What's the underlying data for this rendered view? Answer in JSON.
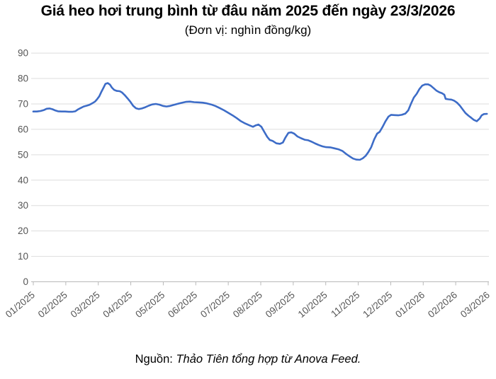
{
  "title": "Giá heo hơi trung bình từ đâu năm 2025 đến ngày 23/3/2026",
  "subtitle": "(Đơn vị: nghìn đồng/kg)",
  "source": {
    "label": "Nguồn: ",
    "text": "Thảo Tiên tổng hợp từ Anova Feed."
  },
  "colors": {
    "line": "#3d6cc7",
    "gridline": "#dddddd",
    "axis": "#b8b8b8",
    "tick_label": "#555555",
    "title_text": "#000000"
  },
  "chart_data": {
    "type": "line",
    "title": "Giá heo hơi trung bình từ đâu năm 2025 đến ngày 23/3/2026",
    "subtitle_unit": "nghìn đồng/kg",
    "xlabel": "",
    "ylabel": "",
    "ylim": [
      0,
      90
    ],
    "y_ticks": [
      0,
      10,
      20,
      30,
      40,
      50,
      60,
      70,
      80,
      90
    ],
    "x_tick_labels": [
      "01/2025",
      "02/2025",
      "03/2025",
      "04/2025",
      "05/2025",
      "06/2025",
      "07/2025",
      "08/2025",
      "09/2025",
      "10/2025",
      "11/2025",
      "12/2025",
      "01/2026",
      "02/2026",
      "03/2026"
    ],
    "x_axis_unit": "month index (0 = 01/2025 tick, 14 = 03/2026 tick)",
    "grid": "horizontal",
    "legend": "none",
    "series": [
      {
        "name": "Giá heo hơi trung bình (nghìn đồng/kg)",
        "points": [
          [
            0.0,
            67.0
          ],
          [
            0.11,
            67.0
          ],
          [
            0.22,
            67.2
          ],
          [
            0.33,
            67.6
          ],
          [
            0.41,
            68.1
          ],
          [
            0.5,
            68.2
          ],
          [
            0.59,
            67.9
          ],
          [
            0.68,
            67.4
          ],
          [
            0.76,
            67.1
          ],
          [
            0.87,
            67.0
          ],
          [
            0.98,
            67.0
          ],
          [
            1.09,
            66.9
          ],
          [
            1.2,
            66.9
          ],
          [
            1.29,
            67.1
          ],
          [
            1.37,
            67.8
          ],
          [
            1.46,
            68.4
          ],
          [
            1.55,
            69.0
          ],
          [
            1.64,
            69.3
          ],
          [
            1.72,
            69.6
          ],
          [
            1.81,
            70.2
          ],
          [
            1.9,
            70.9
          ],
          [
            1.96,
            71.8
          ],
          [
            2.03,
            73.0
          ],
          [
            2.09,
            74.6
          ],
          [
            2.16,
            76.4
          ],
          [
            2.22,
            77.9
          ],
          [
            2.29,
            78.2
          ],
          [
            2.36,
            77.6
          ],
          [
            2.42,
            76.4
          ],
          [
            2.49,
            75.5
          ],
          [
            2.57,
            75.1
          ],
          [
            2.66,
            75.0
          ],
          [
            2.73,
            74.5
          ],
          [
            2.81,
            73.5
          ],
          [
            2.9,
            72.2
          ],
          [
            2.99,
            70.8
          ],
          [
            3.07,
            69.3
          ],
          [
            3.16,
            68.3
          ],
          [
            3.25,
            68.0
          ],
          [
            3.34,
            68.2
          ],
          [
            3.45,
            68.7
          ],
          [
            3.55,
            69.3
          ],
          [
            3.66,
            69.8
          ],
          [
            3.77,
            70.0
          ],
          [
            3.88,
            69.7
          ],
          [
            3.99,
            69.2
          ],
          [
            4.1,
            69.0
          ],
          [
            4.21,
            69.2
          ],
          [
            4.32,
            69.6
          ],
          [
            4.43,
            70.0
          ],
          [
            4.56,
            70.4
          ],
          [
            4.69,
            70.8
          ],
          [
            4.82,
            70.9
          ],
          [
            4.95,
            70.7
          ],
          [
            5.08,
            70.6
          ],
          [
            5.21,
            70.5
          ],
          [
            5.34,
            70.2
          ],
          [
            5.47,
            69.8
          ],
          [
            5.6,
            69.2
          ],
          [
            5.73,
            68.4
          ],
          [
            5.87,
            67.5
          ],
          [
            6.0,
            66.5
          ],
          [
            6.13,
            65.5
          ],
          [
            6.26,
            64.4
          ],
          [
            6.39,
            63.2
          ],
          [
            6.52,
            62.3
          ],
          [
            6.65,
            61.6
          ],
          [
            6.76,
            61.0
          ],
          [
            6.85,
            61.6
          ],
          [
            6.93,
            61.9
          ],
          [
            7.02,
            61.0
          ],
          [
            7.11,
            59.0
          ],
          [
            7.2,
            57.0
          ],
          [
            7.28,
            55.8
          ],
          [
            7.37,
            55.4
          ],
          [
            7.48,
            54.5
          ],
          [
            7.59,
            54.3
          ],
          [
            7.68,
            54.8
          ],
          [
            7.76,
            56.8
          ],
          [
            7.85,
            58.6
          ],
          [
            7.94,
            58.8
          ],
          [
            8.03,
            58.3
          ],
          [
            8.13,
            57.2
          ],
          [
            8.24,
            56.5
          ],
          [
            8.35,
            55.9
          ],
          [
            8.46,
            55.7
          ],
          [
            8.57,
            55.1
          ],
          [
            8.68,
            54.4
          ],
          [
            8.79,
            53.8
          ],
          [
            8.9,
            53.3
          ],
          [
            9.01,
            53.0
          ],
          [
            9.14,
            52.9
          ],
          [
            9.27,
            52.5
          ],
          [
            9.4,
            52.1
          ],
          [
            9.51,
            51.5
          ],
          [
            9.62,
            50.4
          ],
          [
            9.73,
            49.4
          ],
          [
            9.84,
            48.5
          ],
          [
            9.94,
            48.1
          ],
          [
            10.05,
            48.0
          ],
          [
            10.14,
            48.6
          ],
          [
            10.23,
            49.6
          ],
          [
            10.31,
            51.0
          ],
          [
            10.4,
            53.0
          ],
          [
            10.49,
            56.0
          ],
          [
            10.58,
            58.3
          ],
          [
            10.66,
            59.0
          ],
          [
            10.75,
            61.0
          ],
          [
            10.84,
            63.2
          ],
          [
            10.93,
            65.0
          ],
          [
            11.01,
            65.7
          ],
          [
            11.12,
            65.6
          ],
          [
            11.23,
            65.5
          ],
          [
            11.34,
            65.7
          ],
          [
            11.45,
            66.2
          ],
          [
            11.54,
            67.5
          ],
          [
            11.62,
            70.0
          ],
          [
            11.71,
            72.5
          ],
          [
            11.8,
            74.0
          ],
          [
            11.88,
            75.8
          ],
          [
            11.97,
            77.2
          ],
          [
            12.06,
            77.7
          ],
          [
            12.15,
            77.7
          ],
          [
            12.23,
            77.2
          ],
          [
            12.32,
            76.2
          ],
          [
            12.41,
            75.2
          ],
          [
            12.49,
            74.6
          ],
          [
            12.58,
            74.2
          ],
          [
            12.65,
            73.6
          ],
          [
            12.69,
            72.0
          ],
          [
            12.78,
            71.8
          ],
          [
            12.87,
            71.7
          ],
          [
            12.95,
            71.3
          ],
          [
            13.04,
            70.5
          ],
          [
            13.13,
            69.3
          ],
          [
            13.21,
            67.9
          ],
          [
            13.3,
            66.4
          ],
          [
            13.39,
            65.4
          ],
          [
            13.48,
            64.5
          ],
          [
            13.56,
            63.7
          ],
          [
            13.65,
            63.2
          ],
          [
            13.74,
            64.3
          ],
          [
            13.8,
            65.5
          ],
          [
            13.87,
            66.0
          ],
          [
            13.96,
            66.1
          ]
        ]
      }
    ]
  }
}
